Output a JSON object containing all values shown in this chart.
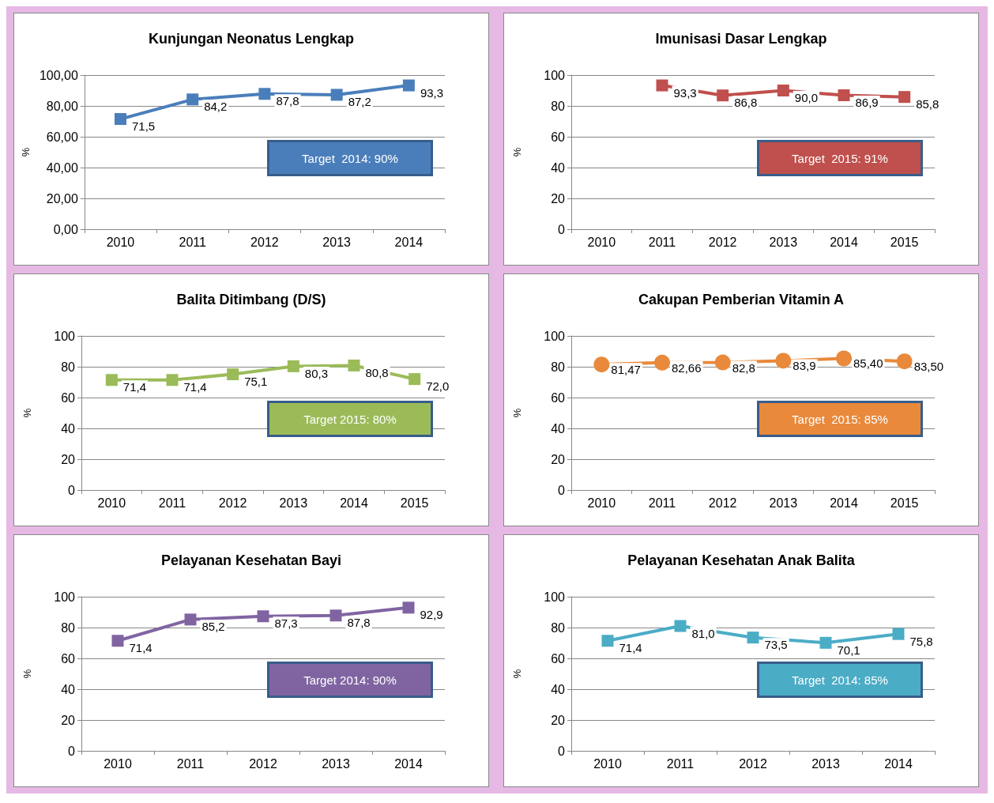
{
  "chart_data": [
    {
      "type": "line",
      "title": "Kunjungan Neonatus Lengkap",
      "ylabel": "%",
      "categories": [
        "2010",
        "2011",
        "2012",
        "2013",
        "2014"
      ],
      "series": [
        {
          "color": "#4a7ebb",
          "values": [
            71.5,
            84.2,
            87.8,
            87.2,
            93.3
          ],
          "value_labels": [
            "71,5",
            "84,2",
            "87,8",
            "87,2",
            "93,3"
          ]
        }
      ],
      "ylim": [
        0,
        100
      ],
      "yticks": [
        {
          "value": 0,
          "label": "0,00"
        },
        {
          "value": 20,
          "label": "20,00"
        },
        {
          "value": 40,
          "label": "40,00"
        },
        {
          "value": 60,
          "label": "60,00"
        },
        {
          "value": 80,
          "label": "80,00"
        },
        {
          "value": 100,
          "label": "100,00"
        }
      ],
      "grid": "y",
      "marker": "square",
      "annotations": [
        "Target  2014: 90%"
      ]
    },
    {
      "type": "line",
      "title": "Imunisasi Dasar Lengkap",
      "ylabel": "%",
      "categories": [
        "2010",
        "2011",
        "2012",
        "2013",
        "2014",
        "2015"
      ],
      "series": [
        {
          "color": "#c0504d",
          "values": [
            null,
            93.3,
            86.8,
            90.0,
            86.9,
            85.8
          ],
          "value_labels": [
            null,
            "93,3",
            "86,8",
            "90,0",
            "86,9",
            "85,8"
          ]
        }
      ],
      "ylim": [
        0,
        100
      ],
      "yticks": [
        0,
        20,
        40,
        60,
        80,
        100
      ],
      "grid": "y",
      "marker": "square",
      "annotations": [
        "Target  2015: 91%"
      ]
    },
    {
      "type": "line",
      "title": "Balita Ditimbang (D/S)",
      "ylabel": "%",
      "categories": [
        "2010",
        "2011",
        "2012",
        "2013",
        "2014",
        "2015"
      ],
      "series": [
        {
          "color": "#9bbb59",
          "values": [
            71.4,
            71.4,
            75.1,
            80.3,
            80.8,
            72.0
          ],
          "value_labels": [
            "71,4",
            "71,4",
            "75,1",
            "80,3",
            "80,8",
            "72,0"
          ]
        }
      ],
      "ylim": [
        0,
        100
      ],
      "yticks": [
        0,
        20,
        40,
        60,
        80,
        100
      ],
      "grid": "y",
      "marker": "square",
      "annotations": [
        "Target 2015: 80%"
      ]
    },
    {
      "type": "line",
      "title": "Cakupan Pemberian Vitamin A",
      "ylabel": "%",
      "categories": [
        "2010",
        "2011",
        "2012",
        "2013",
        "2014",
        "2015"
      ],
      "series": [
        {
          "color": "#e9893b",
          "values": [
            81.47,
            82.66,
            82.8,
            83.9,
            85.4,
            83.5
          ],
          "value_labels": [
            "81,47",
            "82,66",
            "82,8",
            "83,9",
            "85,40",
            "83,50"
          ]
        }
      ],
      "ylim": [
        0,
        100
      ],
      "yticks": [
        0,
        20,
        40,
        60,
        80,
        100
      ],
      "grid": "y",
      "marker": "circle",
      "annotations": [
        "Target  2015: 85%"
      ]
    },
    {
      "type": "line",
      "title": "Pelayanan Kesehatan Bayi",
      "ylabel": "%",
      "categories": [
        "2010",
        "2011",
        "2012",
        "2013",
        "2014"
      ],
      "series": [
        {
          "color": "#8064a2",
          "values": [
            71.4,
            85.2,
            87.3,
            87.8,
            92.9
          ],
          "value_labels": [
            "71,4",
            "85,2",
            "87,3",
            "87,8",
            "92,9"
          ]
        }
      ],
      "ylim": [
        0,
        100
      ],
      "yticks": [
        0,
        20,
        40,
        60,
        80,
        100
      ],
      "grid": "y",
      "marker": "square",
      "annotations": [
        "Target 2014: 90%"
      ]
    },
    {
      "type": "line",
      "title": "Pelayanan Kesehatan Anak Balita",
      "ylabel": "%",
      "categories": [
        "2010",
        "2011",
        "2012",
        "2013",
        "2014"
      ],
      "series": [
        {
          "color": "#4bacc6",
          "values": [
            71.4,
            81.0,
            73.5,
            70.1,
            75.8
          ],
          "value_labels": [
            "71,4",
            "81,0",
            "73,5",
            "70,1",
            "75,8"
          ]
        }
      ],
      "ylim": [
        0,
        100
      ],
      "yticks": [
        0,
        20,
        40,
        60,
        80,
        100
      ],
      "grid": "y",
      "marker": "square",
      "annotations": [
        "Target  2014: 85%"
      ]
    }
  ]
}
